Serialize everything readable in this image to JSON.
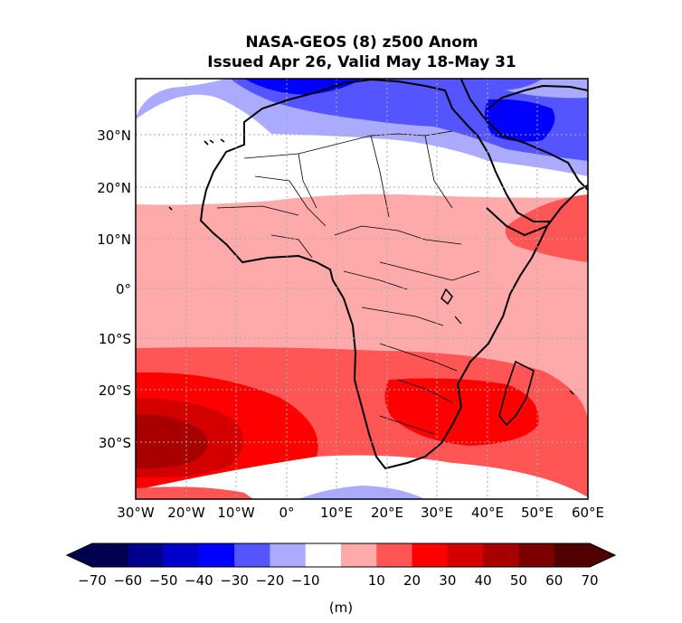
{
  "title": {
    "line1": "NASA-GEOS (8) z500 Anom",
    "line2": "Issued Apr 26, Valid May 18-May 31"
  },
  "map": {
    "region": "Africa",
    "lat_labels": [
      "30°N",
      "20°N",
      "10°N",
      "0°",
      "10°S",
      "20°S",
      "30°S"
    ],
    "lon_labels": [
      "30°W",
      "20°W",
      "10°W",
      "0°",
      "10°E",
      "20°E",
      "30°E",
      "40°E",
      "50°E",
      "60°E"
    ],
    "lon_range": [
      -30,
      60
    ],
    "lat_range": [
      -40,
      40
    ],
    "gridlines": true
  },
  "colorbar": {
    "unit_label": "(m)",
    "ticks": [
      "−70",
      "−60",
      "−50",
      "−40",
      "−30",
      "−20",
      "−10",
      "10",
      "20",
      "30",
      "40",
      "50",
      "60",
      "70"
    ],
    "colors": [
      "#000050",
      "#00008f",
      "#0000cc",
      "#0000ff",
      "#5555ff",
      "#aaaaff",
      "#ffffff",
      "#ffaaaa",
      "#ff5555",
      "#ff0000",
      "#d40000",
      "#a80000",
      "#7c0000",
      "#500000"
    ],
    "extend": "both"
  }
}
